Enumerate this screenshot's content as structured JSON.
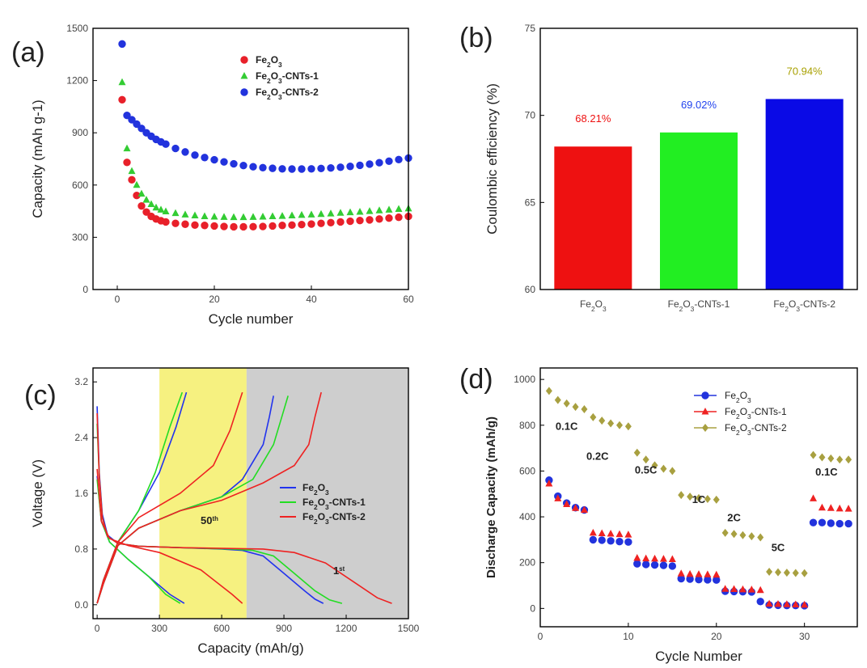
{
  "chart_data": [
    {
      "panel": "(a)",
      "type": "scatter",
      "xlabel": "Cycle number",
      "ylabel": "Capacity (mAh g-1)",
      "xlim": [
        -5,
        60
      ],
      "ylim": [
        0,
        1500
      ],
      "xticks": [
        0,
        20,
        40,
        60
      ],
      "yticks": [
        0,
        300,
        600,
        900,
        1200,
        1500
      ],
      "legend_position": "top-right",
      "series": [
        {
          "name": "Fe2O3",
          "color": "#e8202a",
          "x": [
            1,
            2,
            3,
            4,
            5,
            6,
            7,
            8,
            9,
            10,
            12,
            14,
            16,
            18,
            20,
            22,
            24,
            26,
            28,
            30,
            32,
            34,
            36,
            38,
            40,
            42,
            44,
            46,
            48,
            50,
            52,
            54,
            56,
            58,
            60
          ],
          "y": [
            1090,
            730,
            630,
            540,
            480,
            445,
            420,
            405,
            395,
            388,
            380,
            375,
            370,
            368,
            365,
            362,
            360,
            360,
            361,
            362,
            365,
            368,
            370,
            373,
            376,
            380,
            384,
            388,
            392,
            396,
            400,
            405,
            410,
            415,
            420
          ]
        },
        {
          "name": "Fe2O3-CNTs-1",
          "color": "#33cc33",
          "x": [
            1,
            2,
            3,
            4,
            5,
            6,
            7,
            8,
            9,
            10,
            12,
            14,
            16,
            18,
            20,
            22,
            24,
            26,
            28,
            30,
            32,
            34,
            36,
            38,
            40,
            42,
            44,
            46,
            48,
            50,
            52,
            54,
            56,
            58,
            60
          ],
          "y": [
            1190,
            810,
            680,
            600,
            550,
            515,
            490,
            470,
            458,
            448,
            438,
            430,
            425,
            420,
            418,
            416,
            415,
            415,
            416,
            418,
            420,
            422,
            425,
            428,
            430,
            433,
            436,
            440,
            443,
            446,
            450,
            454,
            458,
            462,
            465
          ]
        },
        {
          "name": "Fe2O3-CNTs-2",
          "color": "#2233dd",
          "x": [
            1,
            2,
            3,
            4,
            5,
            6,
            7,
            8,
            9,
            10,
            12,
            14,
            16,
            18,
            20,
            22,
            24,
            26,
            28,
            30,
            32,
            34,
            36,
            38,
            40,
            42,
            44,
            46,
            48,
            50,
            52,
            54,
            56,
            58,
            60
          ],
          "y": [
            1410,
            1000,
            975,
            950,
            925,
            900,
            880,
            862,
            848,
            835,
            810,
            790,
            772,
            758,
            745,
            733,
            722,
            712,
            705,
            700,
            696,
            693,
            692,
            692,
            693,
            695,
            698,
            702,
            707,
            713,
            720,
            728,
            737,
            746,
            755
          ]
        }
      ]
    },
    {
      "panel": "(b)",
      "type": "bar",
      "ylabel": "Coulombic efficiency (%)",
      "ylim": [
        60,
        75
      ],
      "yticks": [
        60,
        65,
        70,
        75
      ],
      "categories": [
        "Fe2O3",
        "Fe2O3-CNTs-1",
        "Fe2O3-CNTs-2"
      ],
      "values": [
        68.21,
        69.02,
        70.94
      ],
      "value_labels": [
        "68.21%",
        "69.02%",
        "70.94%"
      ],
      "colors": [
        "#ee1111",
        "#22ee22",
        "#0a0ae6"
      ],
      "label_colors": [
        "#ee1111",
        "#2244ee",
        "#a8a000"
      ]
    },
    {
      "panel": "(c)",
      "type": "line",
      "xlabel": "Capacity (mAh/g)",
      "ylabel": "Voltage (V)",
      "xlim": [
        -20,
        1500
      ],
      "ylim": [
        -0.2,
        3.4
      ],
      "xticks": [
        0,
        300,
        600,
        900,
        1200,
        1500
      ],
      "yticks": [
        0.0,
        0.8,
        1.6,
        2.4,
        3.2
      ],
      "ytick_labels": [
        "0.0",
        "0.8",
        "1.6",
        "2.4",
        "3.2"
      ],
      "legend_position": "center-right",
      "shaded_regions": [
        {
          "label": "50th",
          "x": [
            300,
            720
          ],
          "color": "#f4ee6a"
        },
        {
          "label": "1st",
          "x": [
            720,
            1500
          ],
          "color": "#c6c6c6"
        }
      ],
      "series": [
        {
          "name": "Fe2O3",
          "color": "#2233ee",
          "cycle_1_discharge": {
            "x": [
              0,
              10,
              25,
              50,
              100,
              200,
              400,
              600,
              700,
              800,
              900,
              1000,
              1050,
              1090
            ],
            "y": [
              2.85,
              1.9,
              1.3,
              1.0,
              0.88,
              0.84,
              0.82,
              0.8,
              0.78,
              0.7,
              0.45,
              0.2,
              0.08,
              0.02
            ]
          },
          "cycle_1_charge": {
            "x": [
              0,
              30,
              100,
              200,
              400,
              600,
              700,
              750,
              800,
              830,
              850
            ],
            "y": [
              0.02,
              0.3,
              0.85,
              1.1,
              1.35,
              1.55,
              1.8,
              2.05,
              2.3,
              2.7,
              3.0
            ]
          },
          "cycle_50_discharge": {
            "x": [
              0,
              20,
              60,
              150,
              250,
              350,
              420
            ],
            "y": [
              1.85,
              1.2,
              0.9,
              0.65,
              0.4,
              0.15,
              0.02
            ]
          },
          "cycle_50_charge": {
            "x": [
              0,
              30,
              100,
              200,
              300,
              380,
              430
            ],
            "y": [
              0.02,
              0.35,
              0.9,
              1.35,
              1.9,
              2.55,
              3.05
            ]
          }
        },
        {
          "name": "Fe2O3-CNTs-1",
          "color": "#22dd22",
          "cycle_1_discharge": {
            "x": [
              0,
              10,
              25,
              50,
              100,
              200,
              400,
              650,
              750,
              850,
              950,
              1050,
              1120,
              1180
            ],
            "y": [
              2.6,
              1.85,
              1.25,
              0.98,
              0.88,
              0.84,
              0.82,
              0.8,
              0.78,
              0.7,
              0.45,
              0.2,
              0.07,
              0.02
            ]
          },
          "cycle_1_charge": {
            "x": [
              0,
              30,
              100,
              200,
              400,
              600,
              750,
              800,
              850,
              890,
              920
            ],
            "y": [
              0.02,
              0.3,
              0.85,
              1.1,
              1.35,
              1.55,
              1.8,
              2.05,
              2.3,
              2.7,
              3.0
            ]
          },
          "cycle_50_discharge": {
            "x": [
              0,
              20,
              60,
              150,
              250,
              330,
              400
            ],
            "y": [
              1.8,
              1.2,
              0.9,
              0.65,
              0.4,
              0.15,
              0.02
            ]
          },
          "cycle_50_charge": {
            "x": [
              0,
              30,
              100,
              200,
              280,
              350,
              410
            ],
            "y": [
              0.02,
              0.35,
              0.9,
              1.35,
              1.9,
              2.55,
              3.05
            ]
          }
        },
        {
          "name": "Fe2O3-CNTs-2",
          "color": "#ee2222",
          "cycle_1_discharge": {
            "x": [
              0,
              10,
              25,
              50,
              100,
              200,
              400,
              800,
              950,
              1100,
              1250,
              1350,
              1420
            ],
            "y": [
              2.75,
              1.85,
              1.25,
              0.98,
              0.88,
              0.84,
              0.82,
              0.8,
              0.75,
              0.6,
              0.3,
              0.1,
              0.02
            ]
          },
          "cycle_1_charge": {
            "x": [
              0,
              30,
              100,
              200,
              400,
              600,
              800,
              950,
              1020,
              1050,
              1080
            ],
            "y": [
              0.02,
              0.3,
              0.85,
              1.1,
              1.35,
              1.5,
              1.75,
              2.0,
              2.3,
              2.7,
              3.05
            ]
          },
          "cycle_50_discharge": {
            "x": [
              0,
              20,
              60,
              150,
              300,
              500,
              650,
              700
            ],
            "y": [
              1.95,
              1.2,
              0.95,
              0.85,
              0.75,
              0.5,
              0.15,
              0.02
            ]
          },
          "cycle_50_charge": {
            "x": [
              0,
              30,
              100,
              200,
              400,
              560,
              640,
              700
            ],
            "y": [
              0.02,
              0.35,
              0.9,
              1.25,
              1.6,
              2.0,
              2.5,
              3.05
            ]
          }
        }
      ]
    },
    {
      "panel": "(d)",
      "type": "scatter",
      "xlabel": "Cycle Number",
      "ylabel": "Discharge Capacity (mAh/g)",
      "xlim": [
        0,
        36
      ],
      "ylim": [
        -80,
        1050
      ],
      "xticks": [
        0,
        10,
        20,
        30
      ],
      "yticks": [
        0,
        200,
        400,
        600,
        800,
        1000
      ],
      "legend_position": "top-right",
      "rate_labels": [
        "0.1C",
        "0.2C",
        "0.5C",
        "1C",
        "2C",
        "5C",
        "0.1C"
      ],
      "series": [
        {
          "name": "Fe2O3",
          "color": "#2233dd",
          "x": [
            1,
            2,
            3,
            4,
            5,
            6,
            7,
            8,
            9,
            10,
            11,
            12,
            13,
            14,
            15,
            16,
            17,
            18,
            19,
            20,
            21,
            22,
            23,
            24,
            25,
            26,
            27,
            28,
            29,
            30,
            31,
            32,
            33,
            34,
            35
          ],
          "y": [
            560,
            490,
            460,
            440,
            430,
            300,
            298,
            295,
            292,
            290,
            195,
            192,
            190,
            188,
            185,
            130,
            128,
            126,
            125,
            124,
            75,
            74,
            73,
            72,
            30,
            15,
            14,
            13,
            13,
            12,
            375,
            375,
            372,
            370,
            370
          ]
        },
        {
          "name": "Fe2O3-CNTs-1",
          "color": "#ee2222",
          "x": [
            1,
            2,
            3,
            4,
            5,
            6,
            7,
            8,
            9,
            10,
            11,
            12,
            13,
            14,
            15,
            16,
            17,
            18,
            19,
            20,
            21,
            22,
            23,
            24,
            25,
            26,
            27,
            28,
            29,
            30,
            31,
            32,
            33,
            34,
            35
          ],
          "y": [
            545,
            480,
            455,
            438,
            430,
            330,
            328,
            326,
            324,
            322,
            220,
            218,
            217,
            216,
            215,
            152,
            150,
            149,
            148,
            147,
            85,
            84,
            83,
            82,
            80,
            20,
            19,
            18,
            17,
            16,
            480,
            440,
            438,
            436,
            435
          ]
        },
        {
          "name": "Fe2O3-CNTs-2",
          "color": "#a8a040",
          "x": [
            1,
            2,
            3,
            4,
            5,
            6,
            7,
            8,
            9,
            10,
            11,
            12,
            13,
            14,
            15,
            16,
            17,
            18,
            19,
            20,
            21,
            22,
            23,
            24,
            25,
            26,
            27,
            28,
            29,
            30,
            31,
            32,
            33,
            34,
            35
          ],
          "y": [
            950,
            910,
            895,
            880,
            870,
            835,
            820,
            808,
            800,
            795,
            680,
            650,
            625,
            610,
            600,
            495,
            488,
            482,
            478,
            475,
            330,
            325,
            320,
            315,
            310,
            160,
            158,
            156,
            155,
            154,
            670,
            660,
            655,
            650,
            650
          ]
        }
      ]
    }
  ]
}
